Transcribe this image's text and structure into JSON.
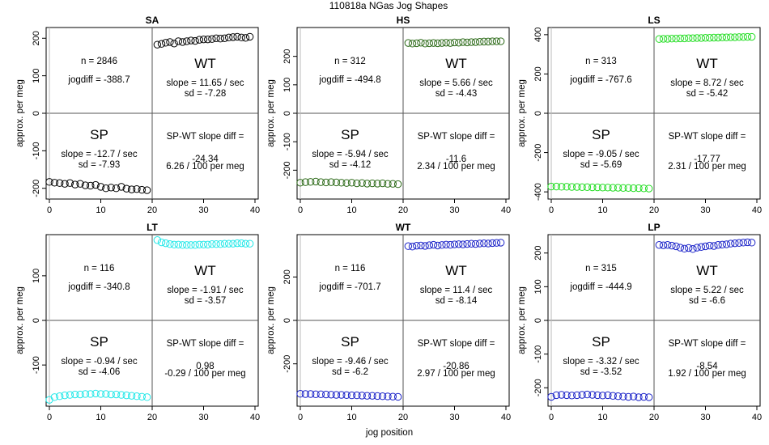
{
  "figure": {
    "title": "110818a    NGas Jog Shapes",
    "xlabel": "jog position",
    "ylabel": "approx. per meg"
  },
  "chart_data": [
    {
      "type": "scatter",
      "title": "SA",
      "color": "#000000",
      "xlim": [
        0,
        40
      ],
      "ylim": [
        -220,
        220
      ],
      "yticks": [
        -200,
        -100,
        0,
        100,
        200
      ],
      "xticks": [
        0,
        10,
        20,
        30,
        40
      ],
      "n_text": "n = 2846",
      "jogdiff_text": "jogdiff = -388.7",
      "wt_label": "WT",
      "wt_slope_text": "slope = 11.65 / sec",
      "wt_sd_text": "sd = -7.28",
      "sp_label": "SP",
      "sp_slope_text": "slope = -12.7 / sec",
      "sp_sd_text": "sd = -7.93",
      "diff_label": "SP-WT slope diff =",
      "diff_value": "-24.34",
      "diff_per_text": "6.26 / 100 per meg",
      "sp_values": [
        -183,
        -185,
        -186,
        -188,
        -186,
        -190,
        -188,
        -192,
        -193,
        -191,
        -196,
        -200,
        -198,
        -200,
        -196,
        -201,
        -203,
        -202,
        -204,
        -205
      ],
      "wt_values": [
        183,
        185,
        188,
        190,
        186,
        192,
        190,
        192,
        194,
        193,
        196,
        197,
        197,
        198,
        200,
        199,
        200,
        202,
        203,
        204,
        202,
        201,
        204
      ]
    },
    {
      "type": "scatter",
      "title": "HS",
      "color": "#2e6b1a",
      "xlim": [
        0,
        40
      ],
      "ylim": [
        -290,
        290
      ],
      "yticks": [
        -200,
        -100,
        0,
        100,
        200
      ],
      "xticks": [
        0,
        10,
        20,
        30,
        40
      ],
      "n_text": "n = 312",
      "jogdiff_text": "jogdiff = -494.8",
      "wt_label": "WT",
      "wt_slope_text": "slope = 5.66 / sec",
      "wt_sd_text": "sd = -4.43",
      "sp_label": "SP",
      "sp_slope_text": "slope = -5.94 / sec",
      "sp_sd_text": "sd = -4.12",
      "diff_label": "SP-WT slope diff =",
      "diff_value": "-11.6",
      "diff_per_text": "2.34 / 100 per meg",
      "sp_values": [
        -244,
        -242,
        -241,
        -240,
        -242,
        -243,
        -242,
        -243,
        -244,
        -245,
        -244,
        -246,
        -245,
        -247,
        -246,
        -247,
        -246,
        -248,
        -248,
        -249
      ],
      "wt_values": [
        247,
        245,
        246,
        248,
        245,
        246,
        247,
        246,
        247,
        248,
        247,
        249,
        248,
        250,
        249,
        250,
        250,
        251,
        252,
        252,
        253,
        253,
        253
      ]
    },
    {
      "type": "scatter",
      "title": "LS",
      "color": "#22dd22",
      "xlim": [
        0,
        40
      ],
      "ylim": [
        -420,
        420
      ],
      "yticks": [
        -400,
        -200,
        0,
        200,
        400
      ],
      "xticks": [
        0,
        10,
        20,
        30,
        40
      ],
      "n_text": "n = 313",
      "jogdiff_text": "jogdiff = -767.6",
      "wt_label": "WT",
      "wt_slope_text": "slope = 8.72 / sec",
      "wt_sd_text": "sd = -5.42",
      "sp_label": "SP",
      "sp_slope_text": "slope = -9.05 / sec",
      "sp_sd_text": "sd = -5.69",
      "diff_label": "SP-WT slope diff =",
      "diff_value": "-17.77",
      "diff_per_text": "2.31 / 100 per meg",
      "sp_values": [
        -373,
        -373,
        -374,
        -374,
        -375,
        -375,
        -376,
        -376,
        -377,
        -377,
        -378,
        -378,
        -379,
        -379,
        -380,
        -380,
        -381,
        -381,
        -382,
        -383
      ],
      "wt_values": [
        378,
        379,
        379,
        380,
        380,
        381,
        381,
        382,
        382,
        383,
        383,
        384,
        384,
        385,
        385,
        386,
        386,
        387,
        387,
        388,
        388,
        389,
        389
      ]
    },
    {
      "type": "scatter",
      "title": "LT",
      "color": "#22e8e8",
      "xlim": [
        0,
        40
      ],
      "ylim": [
        -185,
        185
      ],
      "yticks": [
        -100,
        0,
        100
      ],
      "xticks": [
        0,
        10,
        20,
        30,
        40
      ],
      "n_text": "n = 116",
      "jogdiff_text": "jogdiff = -340.8",
      "wt_label": "WT",
      "wt_slope_text": "slope = -1.91 / sec",
      "wt_sd_text": "sd = -3.57",
      "sp_label": "SP",
      "sp_slope_text": "slope = -0.94 / sec",
      "sp_sd_text": "sd = -4.06",
      "diff_label": "SP-WT slope diff =",
      "diff_value": "0.98",
      "diff_per_text": "-0.29 / 100 per meg",
      "sp_values": [
        -178,
        -172,
        -170,
        -168,
        -167,
        -166,
        -166,
        -165,
        -165,
        -164,
        -165,
        -165,
        -166,
        -166,
        -167,
        -168,
        -169,
        -170,
        -171,
        -172
      ],
      "wt_values": [
        180,
        175,
        173,
        171,
        170,
        170,
        169,
        169,
        169,
        169,
        170,
        170,
        170,
        171,
        171,
        171,
        172,
        172,
        172,
        173,
        173,
        172,
        172
      ]
    },
    {
      "type": "scatter",
      "title": "WT",
      "color": "#1a22c8",
      "xlim": [
        0,
        40
      ],
      "ylim": [
        -380,
        380
      ],
      "yticks": [
        -200,
        0,
        200
      ],
      "xticks": [
        0,
        10,
        20,
        30,
        40
      ],
      "n_text": "n = 116",
      "jogdiff_text": "jogdiff = -701.7",
      "wt_label": "WT",
      "wt_slope_text": "slope = 11.4 / sec",
      "wt_sd_text": "sd = -8.14",
      "sp_label": "SP",
      "sp_slope_text": "slope = -9.46 / sec",
      "sp_sd_text": "sd = -6.2",
      "diff_label": "SP-WT slope diff =",
      "diff_value": "-20.86",
      "diff_per_text": "2.97 / 100 per meg",
      "sp_values": [
        -338,
        -339,
        -339,
        -340,
        -340,
        -341,
        -342,
        -343,
        -343,
        -344,
        -345,
        -345,
        -346,
        -347,
        -347,
        -348,
        -349,
        -350,
        -351,
        -352
      ],
      "wt_values": [
        342,
        340,
        344,
        345,
        343,
        346,
        348,
        345,
        347,
        349,
        348,
        350,
        351,
        350,
        352,
        353,
        352,
        354,
        355,
        354,
        356,
        357,
        358
      ]
    },
    {
      "type": "scatter",
      "title": "LP",
      "color": "#1a22c8",
      "xlim": [
        0,
        40
      ],
      "ylim": [
        -245,
        245
      ],
      "yticks": [
        -200,
        -100,
        0,
        100,
        200
      ],
      "xticks": [
        0,
        10,
        20,
        30,
        40
      ],
      "n_text": "n = 315",
      "jogdiff_text": "jogdiff = -444.9",
      "wt_label": "WT",
      "wt_slope_text": "slope = 5.22 / sec",
      "wt_sd_text": "sd = -6.6",
      "sp_label": "SP",
      "sp_slope_text": "slope = -3.32 / sec",
      "sp_sd_text": "sd = -3.52",
      "diff_label": "SP-WT slope diff =",
      "diff_value": "-8.54",
      "diff_per_text": "1.92 / 100 per meg",
      "sp_values": [
        -227,
        -222,
        -221,
        -222,
        -223,
        -222,
        -221,
        -220,
        -221,
        -222,
        -223,
        -222,
        -224,
        -225,
        -226,
        -227,
        -226,
        -228,
        -227,
        -228
      ],
      "wt_values": [
        224,
        223,
        224,
        222,
        220,
        216,
        213,
        215,
        212,
        216,
        218,
        220,
        222,
        221,
        224,
        225,
        226,
        228,
        229,
        230,
        231,
        232,
        231
      ]
    }
  ]
}
